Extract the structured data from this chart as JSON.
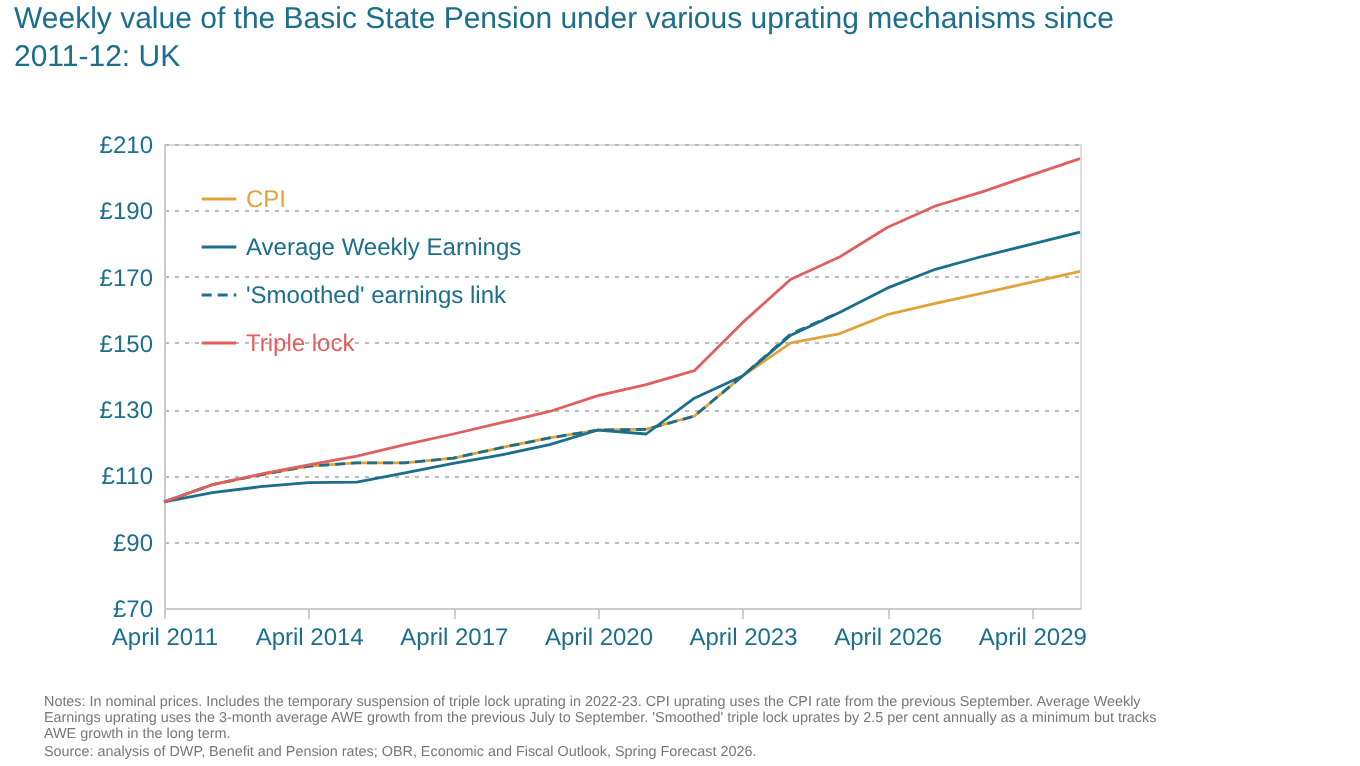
{
  "chart_data": {
    "type": "line",
    "title": "Weekly value of the Basic State Pension under various uprating mechanisms since 2011-12: UK",
    "annotations": [
      "Notes: In nominal prices. Includes the temporary suspension of triple lock uprating in 2022-23. CPI uprating uses the CPI rate from the previous September. Average Weekly Earnings uprating uses the 3-month average AWE growth from the previous July to September. 'Smoothed' triple lock uprates by 2.5 per cent annually as a minimum but tracks AWE growth in the long term.",
      "Source: analysis of DWP, Benefit and Pension rates; OBR, Economic and Fiscal Outlook, Spring Forecast 2026."
    ],
    "x": [
      "2011-04",
      "2012-04",
      "2013-04",
      "2014-04",
      "2015-04",
      "2016-04",
      "2017-04",
      "2018-04",
      "2019-04",
      "2020-04",
      "2021-04",
      "2022-04",
      "2023-04",
      "2024-04",
      "2025-04",
      "2026-04",
      "2027-04",
      "2028-04",
      "2029-04",
      "2030-04"
    ],
    "series": [
      {
        "name": "CPI",
        "color": "#e3a33b",
        "line_style": "solid",
        "values": [
          102.0,
          107.2,
          110.2,
          112.8,
          113.8,
          113.8,
          115.2,
          118.4,
          121.3,
          123.7,
          124.0,
          127.9,
          140.0,
          150.0,
          152.7,
          158.5,
          161.9,
          165.1,
          168.3,
          171.6
        ]
      },
      {
        "name": "Average Weekly Earnings",
        "color": "#1b6e8c",
        "line_style": "solid",
        "values": [
          102.0,
          104.8,
          106.6,
          107.8,
          108.0,
          110.8,
          113.6,
          116.2,
          119.3,
          123.7,
          122.5,
          133.3,
          140.0,
          152.3,
          159.1,
          166.5,
          172.2,
          176.2,
          179.8,
          183.4
        ]
      },
      {
        "name": "'Smoothed' earnings link",
        "color": "#1b6e8c",
        "line_style": "dashed",
        "values": [
          102.0,
          107.2,
          110.2,
          112.8,
          113.8,
          113.8,
          115.2,
          118.4,
          121.3,
          123.7,
          123.9,
          127.9,
          140.0,
          152.7,
          159.1,
          null,
          null,
          null,
          null,
          null
        ]
      },
      {
        "name": "Triple lock",
        "color": "#e05f5f",
        "line_style": "solid",
        "values": [
          102.0,
          107.2,
          110.4,
          113.2,
          115.8,
          119.3,
          122.5,
          125.9,
          129.3,
          134.1,
          137.4,
          141.6,
          156.1,
          169.2,
          175.8,
          184.8,
          191.3,
          195.7,
          200.7,
          205.6
        ]
      }
    ],
    "xlim": [
      "2011-04",
      "2030-04"
    ],
    "xticks": [
      {
        "value": "2011-04",
        "label": "April 2011"
      },
      {
        "value": "2014-04",
        "label": "April 2014"
      },
      {
        "value": "2017-04",
        "label": "April 2017"
      },
      {
        "value": "2020-04",
        "label": "April 2020"
      },
      {
        "value": "2023-04",
        "label": "April 2023"
      },
      {
        "value": "2026-04",
        "label": "April 2026"
      },
      {
        "value": "2029-04",
        "label": "April 2029"
      }
    ],
    "ylim": [
      70,
      210
    ],
    "yticks": [
      {
        "value": 70,
        "label": "£70"
      },
      {
        "value": 90,
        "label": "£90"
      },
      {
        "value": 110,
        "label": "£110"
      },
      {
        "value": 130,
        "label": "£130"
      },
      {
        "value": 150,
        "label": "£150"
      },
      {
        "value": 170,
        "label": "£170"
      },
      {
        "value": 190,
        "label": "£190"
      },
      {
        "value": 210,
        "label": "£210"
      }
    ],
    "grid": "y",
    "legend": "top left",
    "marker": "none"
  }
}
